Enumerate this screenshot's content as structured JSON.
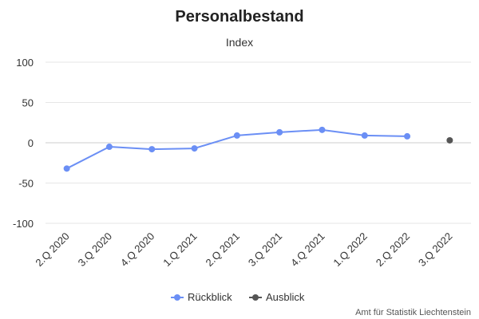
{
  "chart_data": {
    "type": "line",
    "title": "Personalbestand",
    "subtitle": "Index",
    "categories": [
      "2.Q 2020",
      "3.Q 2020",
      "4.Q 2020",
      "1.Q 2021",
      "2.Q 2021",
      "3.Q 2021",
      "4.Q 2021",
      "1.Q 2022",
      "2.Q 2022",
      "3.Q 2022"
    ],
    "ylim": [
      -100,
      100
    ],
    "yticks": [
      100,
      50,
      0,
      -50,
      -100
    ],
    "grid": true,
    "legend_position": "bottom-center",
    "series": [
      {
        "name": "Rückblick",
        "color": "#6b8ff5",
        "values": [
          -32,
          -5,
          -8,
          -7,
          9,
          13,
          16,
          9,
          8,
          null
        ]
      },
      {
        "name": "Ausblick",
        "color": "#555555",
        "values": [
          null,
          null,
          null,
          null,
          null,
          null,
          null,
          null,
          null,
          3
        ]
      }
    ],
    "credit": "Amt für Statistik Liechtenstein"
  }
}
